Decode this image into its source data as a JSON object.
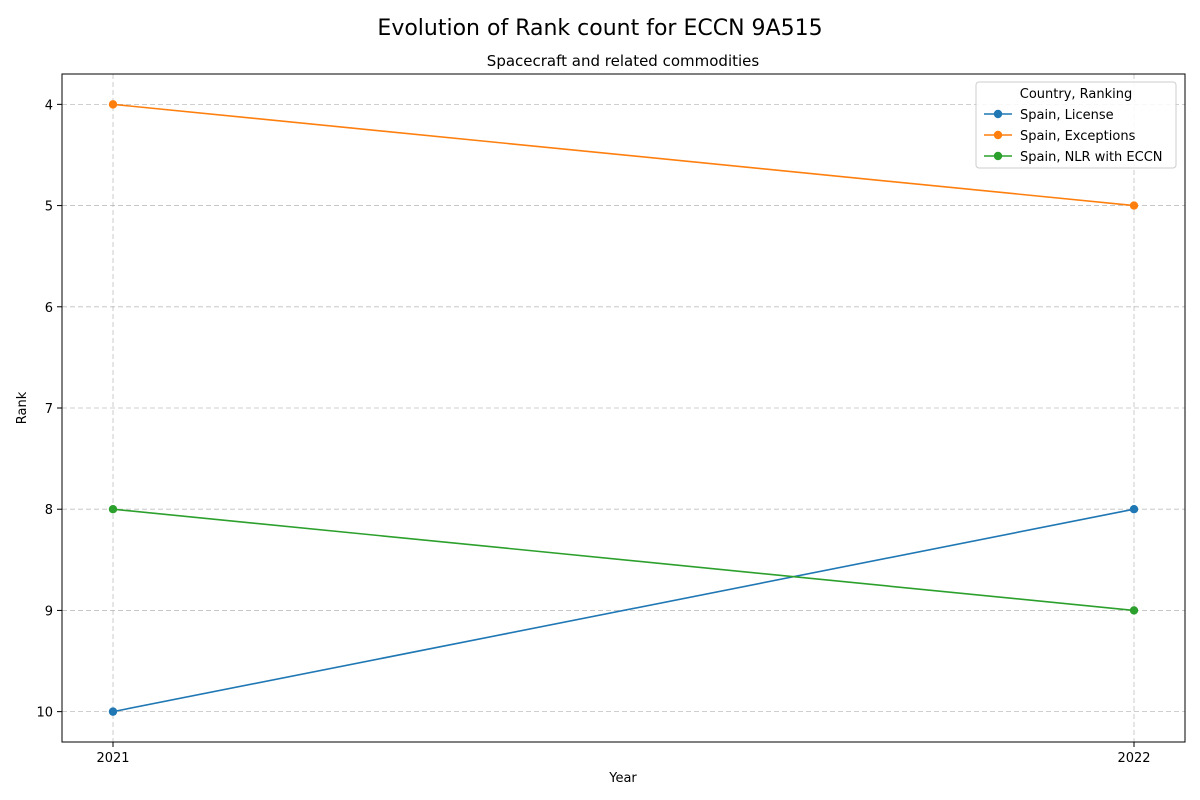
{
  "chart_data": {
    "type": "line",
    "title": "Evolution of Rank count for ECCN 9A515",
    "subtitle": "Spacecraft and related commodities",
    "xlabel": "Year",
    "ylabel": "Rank",
    "x": [
      2021,
      2022
    ],
    "x_tick_labels": [
      "2021",
      "2022"
    ],
    "y_ticks": [
      4,
      5,
      6,
      7,
      8,
      9,
      10
    ],
    "y_tick_labels": [
      "4",
      "5",
      "6",
      "7",
      "8",
      "9",
      "10"
    ],
    "ylim": [
      10.3,
      3.7
    ],
    "y_inverted": true,
    "grid": true,
    "legend": {
      "title": "Country, Ranking",
      "placement": "top-right"
    },
    "series": [
      {
        "name": "Spain, License",
        "values": [
          10,
          8
        ],
        "color": "#1f77b4"
      },
      {
        "name": "Spain, Exceptions",
        "values": [
          4,
          5
        ],
        "color": "#ff7f0e"
      },
      {
        "name": "Spain, NLR with ECCN",
        "values": [
          8,
          9
        ],
        "color": "#2ca02c"
      }
    ]
  }
}
